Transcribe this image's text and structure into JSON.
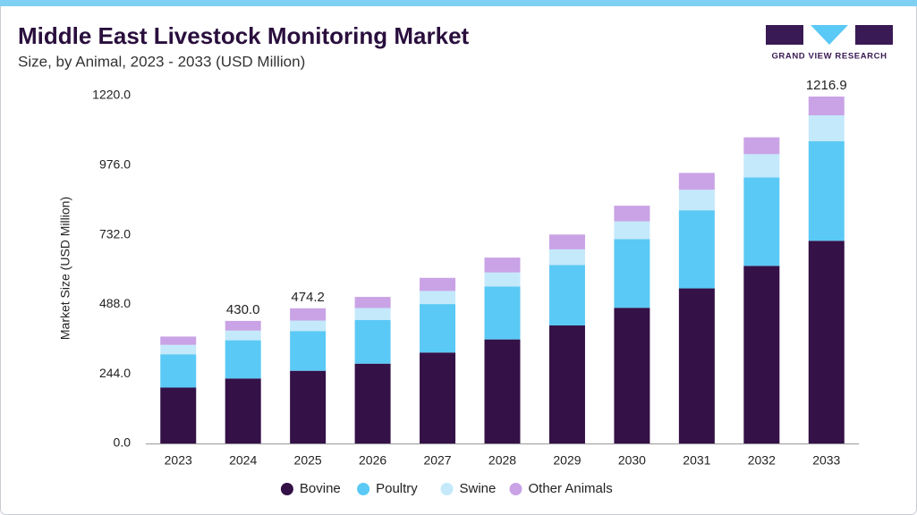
{
  "chart_data": {
    "type": "stacked_bar",
    "title": "Middle East Livestock Monitoring Market",
    "subtitle": "Size, by Animal, 2023 - 2033 (USD Million)",
    "brand": "GRAND VIEW RESEARCH",
    "y_label": "Market Size (USD Million)",
    "categories": [
      "2023",
      "2024",
      "2025",
      "2026",
      "2027",
      "2028",
      "2029",
      "2030",
      "2031",
      "2032",
      "2033"
    ],
    "series": [
      {
        "name": "Bovine",
        "color": "#341147",
        "values": [
          196,
          228,
          255.0,
          280,
          319,
          365,
          414,
          476,
          544,
          623,
          711
        ]
      },
      {
        "name": "Poultry",
        "color": "#5bc9f5",
        "values": [
          117,
          134,
          139.5,
          153,
          170,
          186,
          212,
          241,
          274,
          310,
          349
        ]
      },
      {
        "name": "Swine",
        "color": "#c4e9fb",
        "values": [
          33,
          34,
          36.6,
          42,
          46,
          49,
          55,
          62,
          72,
          82,
          91
        ]
      },
      {
        "name": "Other Animals",
        "color": "#c9a3e6",
        "values": [
          29,
          34,
          43.1,
          39,
          46,
          52,
          52,
          55,
          59,
          59,
          65.9
        ]
      }
    ],
    "totals": [
      null,
      430.0,
      474.2,
      null,
      null,
      null,
      null,
      null,
      null,
      null,
      1216.9
    ],
    "total_labels": [
      null,
      "430.0",
      "474.2",
      null,
      null,
      null,
      null,
      null,
      null,
      null,
      "1216.9"
    ],
    "ylim": [
      0,
      1220
    ],
    "yticks": [
      {
        "value": 0,
        "label": "0.0"
      },
      {
        "value": 244,
        "label": "244.0"
      },
      {
        "value": 488,
        "label": "488.0"
      },
      {
        "value": 732,
        "label": "732.0"
      },
      {
        "value": 976,
        "label": "976.0"
      },
      {
        "value": 1220,
        "label": "1220.0"
      }
    ],
    "legend": "bottom"
  }
}
